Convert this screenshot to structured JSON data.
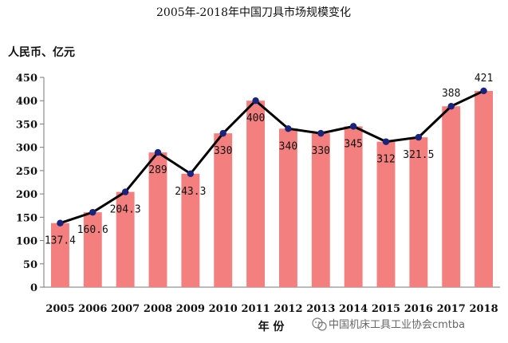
{
  "chart_data": {
    "type": "bar",
    "title": "2005年-2018年中国刀具市场规模变化",
    "ylabel": "人民币、亿元",
    "xlabel": "年  份",
    "ylim": [
      0,
      450
    ],
    "yticks": [
      0,
      50,
      100,
      150,
      200,
      250,
      300,
      350,
      400,
      450
    ],
    "grid": false,
    "categories": [
      "2005",
      "2006",
      "2007",
      "2008",
      "2009",
      "2010",
      "2011",
      "2012",
      "2013",
      "2014",
      "2015",
      "2016",
      "2017",
      "2018"
    ],
    "series": [
      {
        "type": "bar",
        "values": [
          137.4,
          160.6,
          204.3,
          289,
          243.3,
          330,
          400,
          340,
          330,
          345,
          312,
          321.5,
          388,
          421
        ],
        "color": "#f47f7f"
      },
      {
        "type": "line",
        "values": [
          137.4,
          160.6,
          204.3,
          289,
          243.3,
          330,
          400,
          340,
          330,
          345,
          312,
          321.5,
          388,
          421
        ],
        "color": "#000000",
        "marker_color": "#1a237e"
      }
    ],
    "data_labels": [
      "137.4",
      "160.6",
      "204.3",
      "289",
      "243.3",
      "330",
      "400",
      "340",
      "330",
      "345",
      "312",
      "321.5",
      "388",
      "421"
    ]
  },
  "watermark": {
    "text": "中国机床工具工业协会cmtba",
    "icon": "wechat-icon"
  }
}
